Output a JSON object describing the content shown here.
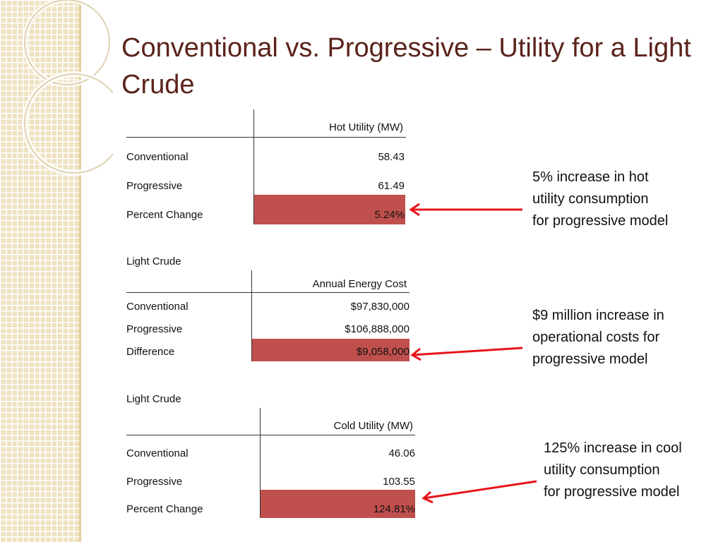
{
  "slide": {
    "title": "Conventional vs. Progressive – Utility for a Light Crude"
  },
  "table1": {
    "header": "Hot Utility (MW)",
    "rows": [
      {
        "label": "Conventional",
        "value": "58.43"
      },
      {
        "label": "Progressive",
        "value": "61.49"
      },
      {
        "label": "Percent Change",
        "value": "5.24%"
      }
    ]
  },
  "table2": {
    "section_label": "Light Crude",
    "header": "Annual Energy Cost",
    "rows": [
      {
        "label": "Conventional",
        "value": "$97,830,000"
      },
      {
        "label": "Progressive",
        "value": "$106,888,000"
      },
      {
        "label": "Difference",
        "value": "$9,058,000"
      }
    ]
  },
  "table3": {
    "section_label": "Light Crude",
    "header": "Cold Utility (MW)",
    "rows": [
      {
        "label": "Conventional",
        "value": "46.06"
      },
      {
        "label": "Progressive",
        "value": "103.55"
      },
      {
        "label": "Percent Change",
        "value": "124.81%"
      }
    ]
  },
  "notes": {
    "note1": [
      "5% increase in hot",
      "utility consumption",
      "for progressive model"
    ],
    "note2": [
      "$9 million increase in",
      "operational costs for",
      "progressive model"
    ],
    "note3": [
      "125% increase in cool",
      "utility consumption",
      "for progressive model"
    ]
  },
  "colors": {
    "title": "#5b231c",
    "highlight": "#c0504d",
    "arrow": "#e8151c",
    "strip": "#efe2c1"
  }
}
